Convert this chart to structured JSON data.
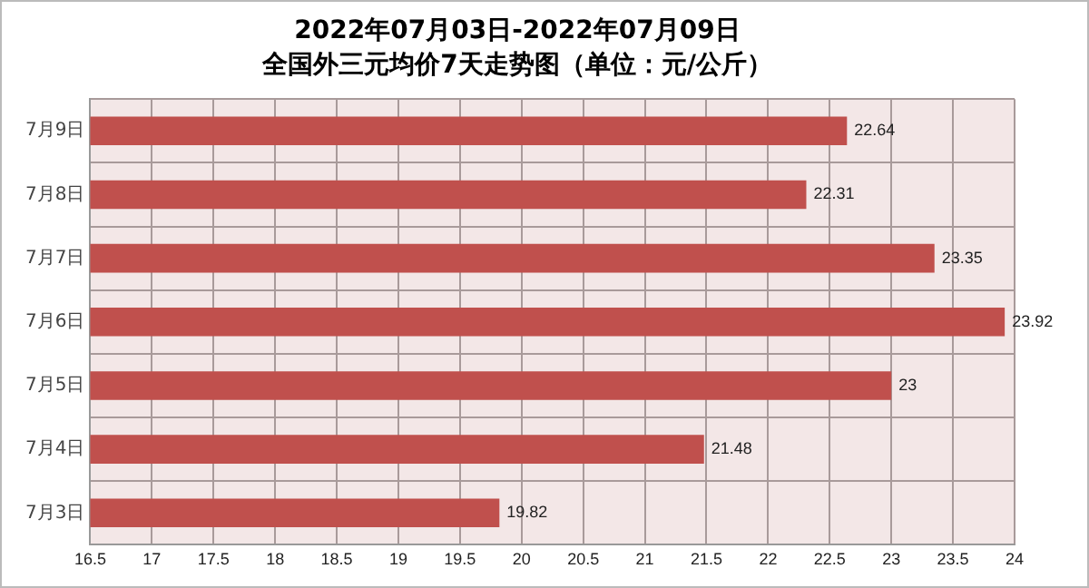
{
  "chart_data": {
    "type": "bar",
    "orientation": "horizontal",
    "title": "2022年07月03日-2022年07月09日",
    "subtitle": "全国外三元均价7天走势图（单位：元/公斤）",
    "categories": [
      "7月9日",
      "7月8日",
      "7月7日",
      "7月6日",
      "7月5日",
      "7月4日",
      "7月3日"
    ],
    "values": [
      22.64,
      22.31,
      23.35,
      23.92,
      23,
      21.48,
      19.82
    ],
    "color": "#c0504d",
    "xlim": [
      16.5,
      24
    ],
    "xticks": [
      16.5,
      17,
      17.5,
      18,
      18.5,
      19,
      19.5,
      20,
      20.5,
      21,
      21.5,
      22,
      22.5,
      23,
      23.5,
      24
    ],
    "grid": true,
    "data_labels": true,
    "legend": false
  }
}
